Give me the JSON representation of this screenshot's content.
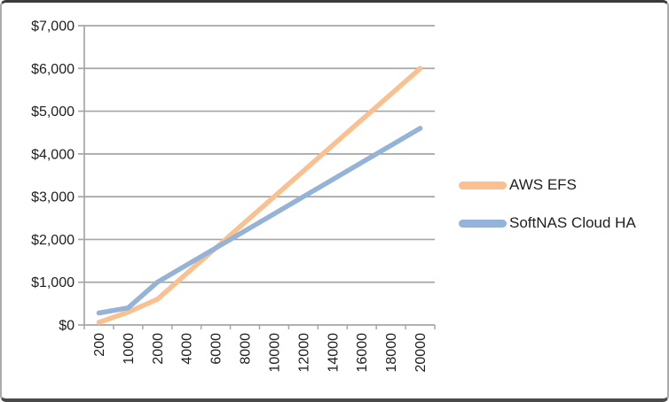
{
  "frame": {
    "background": "#ffffff",
    "side_border_color": "#ababab",
    "edge_border_color": "#3a3a3a"
  },
  "chart_data": {
    "type": "line",
    "title": "",
    "xlabel": "",
    "ylabel": "",
    "categories": [
      "200",
      "1000",
      "2000",
      "4000",
      "6000",
      "8000",
      "10000",
      "12000",
      "14000",
      "16000",
      "18000",
      "20000"
    ],
    "series": [
      {
        "name": "AWS EFS",
        "color": "#FAC090",
        "values": [
          60,
          300,
          600,
          1200,
          1800,
          2400,
          3000,
          3600,
          4200,
          4800,
          5400,
          6000
        ]
      },
      {
        "name": "SoftNAS Cloud HA",
        "color": "#95B3D7",
        "values": [
          280,
          400,
          1000,
          1400,
          1800,
          2200,
          2600,
          3000,
          3400,
          3800,
          4200,
          4600
        ]
      }
    ],
    "y_axis": {
      "min": 0,
      "max": 7000,
      "step": 1000,
      "tick_labels": [
        "$0",
        "$1,000",
        "$2,000",
        "$3,000",
        "$4,000",
        "$5,000",
        "$6,000",
        "$7,000"
      ]
    },
    "grid": true,
    "gridlines": "horizontal",
    "legend_position": "right",
    "axis_color": "#a6a6a6",
    "text_color": "#1f1f1f"
  }
}
